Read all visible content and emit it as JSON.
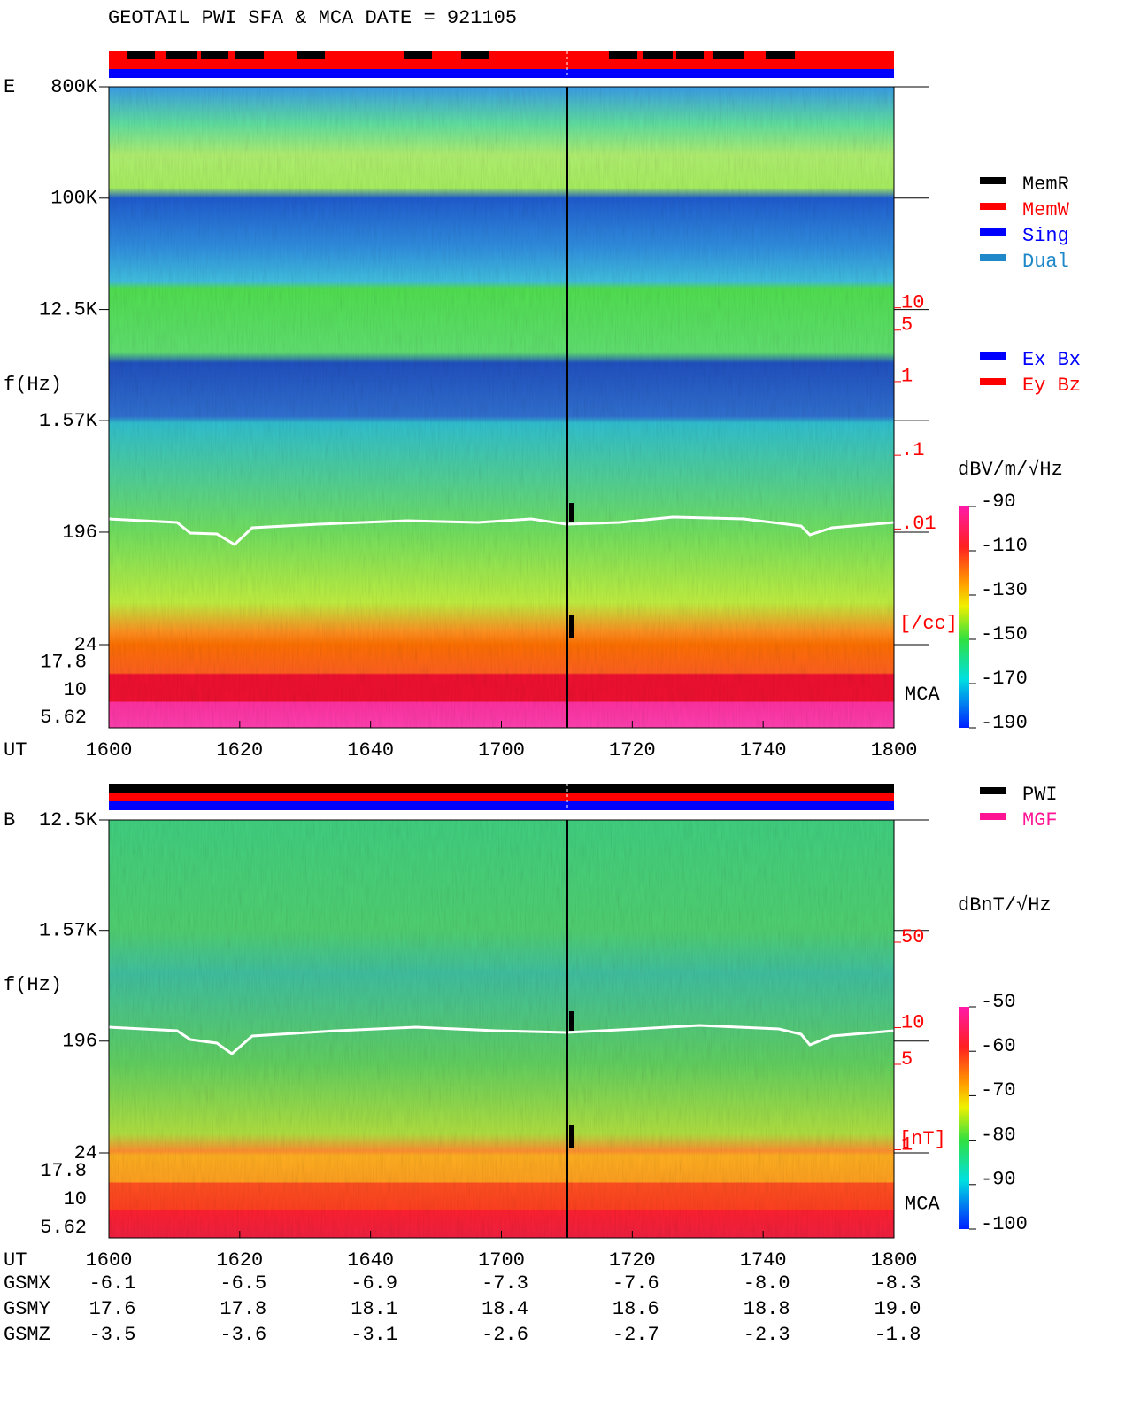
{
  "header": {
    "title": "GEOTAIL  PWI SFA & MCA   DATE = 921105"
  },
  "panels": [
    {
      "label": "E",
      "axis_label": "f(Hz)",
      "scale": "log",
      "ylim": [
        24,
        800000
      ],
      "yticks": [
        {
          "value": 800000,
          "label": "800K"
        },
        {
          "value": 100000,
          "label": "100K"
        },
        {
          "value": 12500,
          "label": "12.5K"
        },
        {
          "value": 1570,
          "label": "1.57K"
        },
        196,
        24
      ],
      "mca_channels": [
        "17.8",
        "10",
        "5.62"
      ],
      "mca_label": "MCA",
      "density_scale": "log",
      "density_ylim": [
        2e-05,
        10000
      ],
      "density_ticks": [
        10,
        5,
        1,
        {
          "value": 0.1,
          "label": ".1"
        },
        {
          "value": 0.01,
          "label": ".01"
        }
      ],
      "density_unit": "[/cc]",
      "density_color": "#ff0000",
      "colorbar_title": "dBV/m/√Hz",
      "clim": [
        -190,
        -90
      ],
      "cticks": [
        -90,
        -110,
        -130,
        -150,
        -170,
        -190
      ]
    },
    {
      "label": "B",
      "axis_label": "f(Hz)",
      "scale": "log",
      "ylim": [
        24,
        12500
      ],
      "yticks": [
        {
          "value": 12500,
          "label": "12.5K"
        },
        {
          "value": 1570,
          "label": "1.57K"
        },
        196,
        24
      ],
      "mca_channels": [
        "17.8",
        "10",
        "5.62"
      ],
      "mca_label": "MCA",
      "density_scale": "log",
      "density_ylim": [
        0.19,
        500
      ],
      "density_ticks": [
        50,
        10,
        5,
        1
      ],
      "density_unit": "[nT]",
      "density_color": "#ff0000",
      "colorbar_title": "dBnT/√Hz",
      "clim": [
        -100,
        -50
      ],
      "cticks": [
        -50,
        -60,
        -70,
        -80,
        -90,
        -100
      ]
    }
  ],
  "time_axis": {
    "label": "UT",
    "ticks": [
      "1600",
      "1620",
      "1640",
      "1700",
      "1720",
      "1740",
      "1800"
    ]
  },
  "legend_mode": [
    {
      "name": "MemR",
      "color": "#000000"
    },
    {
      "name": "MemW",
      "color": "#ff0000"
    },
    {
      "name": "Sing",
      "color": "#0000ff"
    },
    {
      "name": "Dual",
      "color": "#1e88c8"
    }
  ],
  "legend_component": [
    {
      "name": "Ex Bx",
      "color": "#0000ff"
    },
    {
      "name": "Ey Bz",
      "color": "#ff0000"
    }
  ],
  "legend_instrument": [
    {
      "name": "PWI",
      "color": "#000000"
    },
    {
      "name": "MGF",
      "color": "#ff1493"
    }
  ],
  "orbit": [
    {
      "label": "GSMX",
      "values": [
        "-6.1",
        "-6.5",
        "-6.9",
        "-7.3",
        "-7.6",
        "-8.0",
        "-8.3"
      ]
    },
    {
      "label": "GSMY",
      "values": [
        "17.6",
        "17.8",
        "18.1",
        "18.4",
        "18.6",
        "18.8",
        "19.0"
      ]
    },
    {
      "label": "GSMZ",
      "values": [
        "-3.5",
        "-3.6",
        "-3.1",
        "-2.6",
        "-2.7",
        "-2.3",
        "-1.8"
      ]
    }
  ]
}
